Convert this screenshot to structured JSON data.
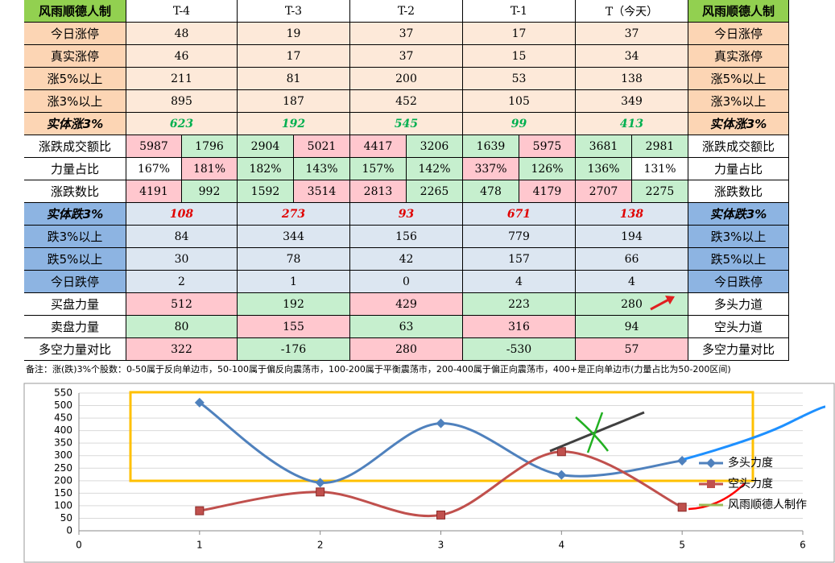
{
  "table": {
    "header": [
      "风雨顺德人制",
      "T-4",
      "T-3",
      "T-2",
      "T-1",
      "T（今天）",
      "风雨顺德人制"
    ],
    "rows": [
      [
        "今日涨停",
        48,
        19,
        37,
        17,
        37,
        "今日涨停"
      ],
      [
        "真实涨停",
        46,
        17,
        37,
        15,
        34,
        "真实涨停"
      ],
      [
        "涨5%以上",
        211,
        81,
        200,
        53,
        138,
        "涨5%以上"
      ],
      [
        "涨3%以上",
        895,
        187,
        452,
        105,
        349,
        "涨3%以上"
      ],
      [
        "实体涨3%",
        623,
        192,
        545,
        99,
        413,
        "实体涨3%"
      ],
      [
        "涨跌成交额比",
        [
          5987,
          1796
        ],
        [
          2904,
          5021
        ],
        [
          4417,
          3206
        ],
        [
          1639,
          5975
        ],
        [
          3681,
          2981
        ],
        "涨跌成交额比"
      ],
      [
        "力量占比",
        [
          "167%",
          "181%"
        ],
        [
          "182%",
          "143%"
        ],
        [
          "157%",
          "142%"
        ],
        [
          "337%",
          "126%"
        ],
        [
          "136%",
          "131%"
        ],
        "力量占比"
      ],
      [
        "涨跌数比",
        [
          4191,
          992
        ],
        [
          1592,
          3514
        ],
        [
          2813,
          2265
        ],
        [
          478,
          4179
        ],
        [
          2707,
          2275
        ],
        "涨跌数比"
      ],
      [
        "实体跌3%",
        108,
        273,
        93,
        671,
        138,
        "实体跌3%"
      ],
      [
        "跌3%以上",
        84,
        344,
        156,
        779,
        194,
        "跌3%以上"
      ],
      [
        "跌5%以上",
        30,
        78,
        42,
        157,
        66,
        "跌5%以上"
      ],
      [
        "今日跌停",
        2,
        1,
        0,
        4,
        4,
        "今日跌停"
      ],
      [
        "买盘力量",
        512,
        192,
        429,
        223,
        280,
        "多头力道"
      ],
      [
        "卖盘力量",
        80,
        155,
        63,
        316,
        94,
        "空头力道"
      ],
      [
        "多空力量对比",
        322,
        -176,
        280,
        -530,
        57,
        "多空力量对比"
      ]
    ],
    "note": "备注：涨(跌)3%个股数：0-50属于反向单边市，50-100属于偏反向震荡市，100-200属于平衡震荡市，200-400属于偏正向震荡市，400+是正向单边市(力量占比为50-200区间)"
  },
  "chart_data": {
    "type": "line",
    "x": [
      1,
      2,
      3,
      4,
      5
    ],
    "series": [
      {
        "name": "多头力度",
        "color": "#4f81bd",
        "values": [
          512,
          192,
          429,
          223,
          280
        ]
      },
      {
        "name": "空头力度",
        "color": "#c0504d",
        "values": [
          80,
          155,
          63,
          316,
          94
        ]
      },
      {
        "name": "风雨顺德人制作",
        "color": "#9bbb59"
      }
    ],
    "xlim": [
      0,
      6
    ],
    "xticks": [
      0,
      1,
      2,
      3,
      4,
      5,
      6
    ],
    "ylim": [
      0,
      550
    ],
    "yticks": [
      0,
      50,
      100,
      150,
      200,
      250,
      300,
      350,
      400,
      450,
      500,
      550
    ],
    "grid": true,
    "legend": "right"
  }
}
